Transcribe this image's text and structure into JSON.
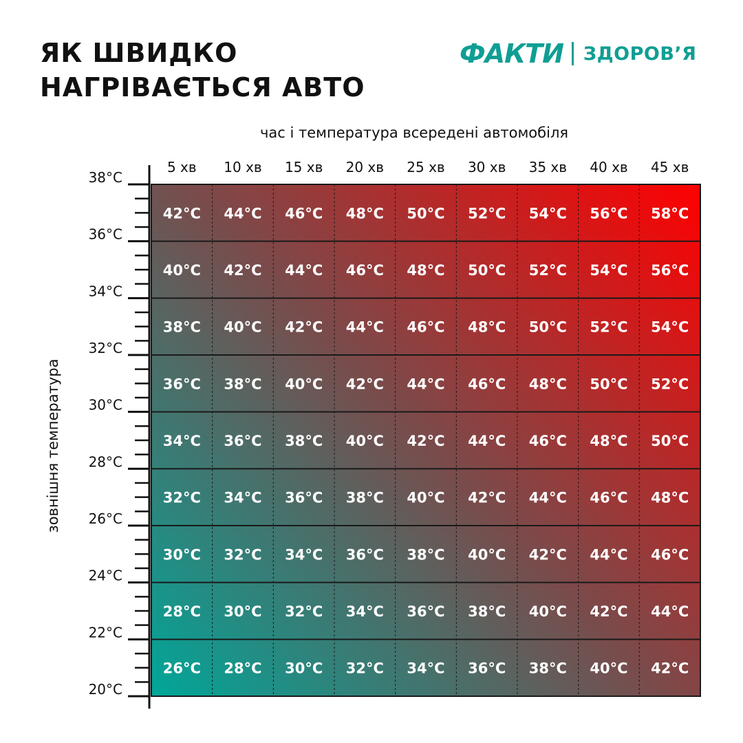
{
  "header": {
    "title_line1": "ЯК ШВИДКО",
    "title_line2": "НАГРІВАЄТЬСЯ АВТО"
  },
  "brand": {
    "name": "ФАКТИ",
    "section": "ЗДОРОВ’Я",
    "color": "#0f9e93"
  },
  "chart_data": {
    "type": "heatmap",
    "xlabel": "час і температура всередені автомобіля",
    "ylabel": "зовнішня температура",
    "x_categories": [
      "5 хв",
      "10 хв",
      "15 хв",
      "20 хв",
      "25 хв",
      "30 хв",
      "35 хв",
      "40 хв",
      "45 хв"
    ],
    "y_ticks": [
      "38°C",
      "36°C",
      "34°C",
      "32°C",
      "30°C",
      "28°C",
      "26°C",
      "24°C",
      "22°C",
      "20°C"
    ],
    "ylim": [
      20,
      38
    ],
    "values": [
      [
        42,
        44,
        46,
        48,
        50,
        52,
        54,
        56,
        58
      ],
      [
        40,
        42,
        44,
        46,
        48,
        50,
        52,
        54,
        56
      ],
      [
        38,
        40,
        42,
        44,
        46,
        48,
        50,
        52,
        54
      ],
      [
        36,
        38,
        40,
        42,
        44,
        46,
        48,
        50,
        52
      ],
      [
        34,
        36,
        38,
        40,
        42,
        44,
        46,
        48,
        50
      ],
      [
        32,
        34,
        36,
        38,
        40,
        42,
        44,
        46,
        48
      ],
      [
        30,
        32,
        34,
        36,
        38,
        40,
        42,
        44,
        46
      ],
      [
        28,
        30,
        32,
        34,
        36,
        38,
        40,
        42,
        44
      ],
      [
        26,
        28,
        30,
        32,
        34,
        36,
        38,
        40,
        42
      ]
    ],
    "value_unit": "°C",
    "colors": {
      "low": "#00a79a",
      "mid": "#7a4b4b",
      "high": "#ff0000"
    }
  }
}
